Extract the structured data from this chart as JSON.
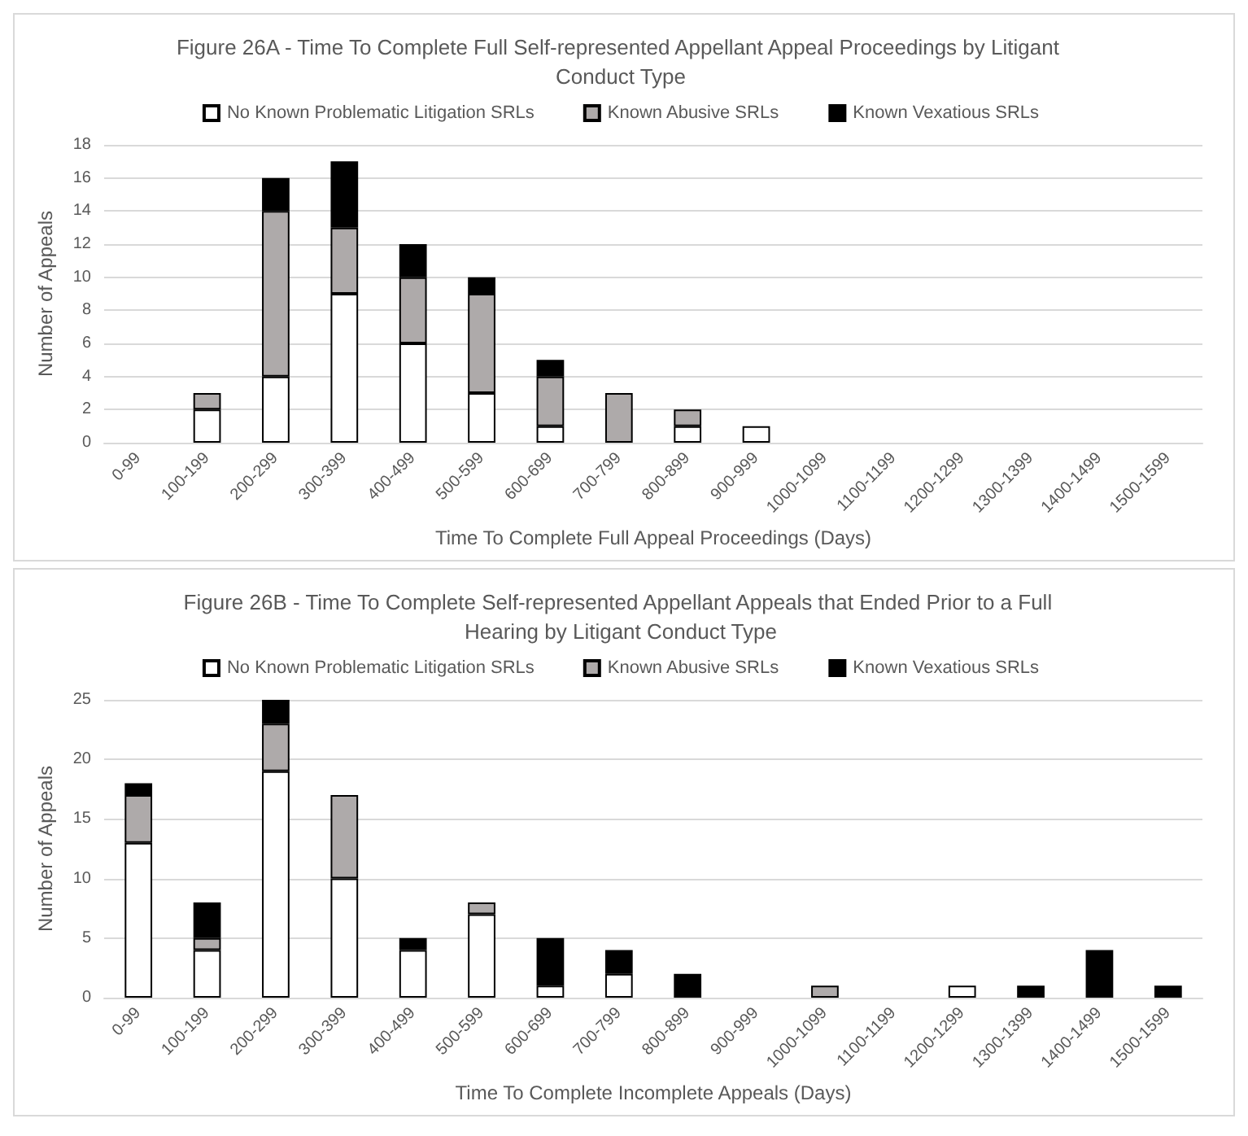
{
  "chart_data": [
    {
      "type": "bar",
      "stacked": true,
      "title": "Figure 26A - Time To Complete Full Self-represented Appellant Appeal Proceedings by Litigant Conduct Type",
      "xlabel": "Time To Complete Full Appeal Proceedings (Days)",
      "ylabel": "Number of Appeals",
      "categories": [
        "0-99",
        "100-199",
        "200-299",
        "300-399",
        "400-499",
        "500-599",
        "600-699",
        "700-799",
        "800-899",
        "900-999",
        "1000-1099",
        "1100-1199",
        "1200-1299",
        "1300-1399",
        "1400-1499",
        "1500-1599"
      ],
      "series": [
        {
          "name": "No Known Problematic Litigation SRLs",
          "color": "#ffffff",
          "values": [
            0,
            2,
            4,
            9,
            6,
            3,
            1,
            0,
            1,
            1,
            0,
            0,
            0,
            0,
            0,
            0
          ]
        },
        {
          "name": "Known Abusive SRLs",
          "color": "#aeaaaa",
          "values": [
            0,
            1,
            10,
            4,
            4,
            6,
            3,
            3,
            1,
            0,
            0,
            0,
            0,
            0,
            0,
            0
          ]
        },
        {
          "name": "Known Vexatious SRLs",
          "color": "#000000",
          "values": [
            0,
            0,
            2,
            4,
            2,
            1,
            1,
            0,
            0,
            0,
            0,
            0,
            0,
            0,
            0,
            0
          ]
        }
      ],
      "ylim": [
        0,
        18
      ],
      "yticks": [
        0,
        2,
        4,
        6,
        8,
        10,
        12,
        14,
        16,
        18
      ],
      "grid": "y",
      "legend": "top"
    },
    {
      "type": "bar",
      "stacked": true,
      "title": "Figure 26B - Time To Complete Self-represented Appellant Appeals that Ended Prior to a Full Hearing by Litigant Conduct Type",
      "xlabel": "Time To Complete Incomplete Appeals (Days)",
      "ylabel": "Number of Appeals",
      "categories": [
        "0-99",
        "100-199",
        "200-299",
        "300-399",
        "400-499",
        "500-599",
        "600-699",
        "700-799",
        "800-899",
        "900-999",
        "1000-1099",
        "1100-1199",
        "1200-1299",
        "1300-1399",
        "1400-1499",
        "1500-1599"
      ],
      "series": [
        {
          "name": "No Known Problematic Litigation SRLs",
          "color": "#ffffff",
          "values": [
            13,
            4,
            19,
            10,
            4,
            7,
            1,
            2,
            0,
            0,
            0,
            0,
            1,
            0,
            0,
            0
          ]
        },
        {
          "name": "Known Abusive SRLs",
          "color": "#aeaaaa",
          "values": [
            4,
            1,
            4,
            7,
            0,
            1,
            0,
            0,
            0,
            0,
            1,
            0,
            0,
            0,
            0,
            0
          ]
        },
        {
          "name": "Known Vexatious SRLs",
          "color": "#000000",
          "values": [
            1,
            3,
            2,
            0,
            1,
            0,
            4,
            2,
            2,
            0,
            0,
            0,
            0,
            1,
            4,
            1
          ]
        }
      ],
      "ylim": [
        0,
        25
      ],
      "yticks": [
        0,
        5,
        10,
        15,
        20,
        25
      ],
      "grid": "y",
      "legend": "top"
    }
  ]
}
